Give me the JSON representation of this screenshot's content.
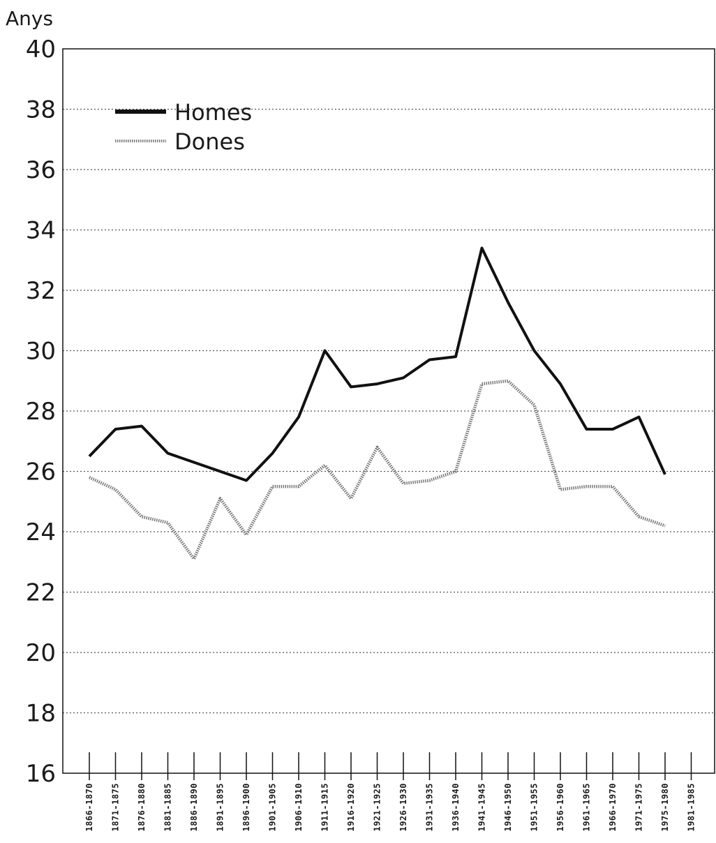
{
  "chart_data": {
    "type": "line",
    "ylabel": "Anys",
    "ylim": [
      16,
      40
    ],
    "yticks": [
      16,
      18,
      20,
      22,
      24,
      26,
      28,
      30,
      32,
      34,
      36,
      38,
      40
    ],
    "grid": true,
    "legend_placement": "top-left",
    "categories": [
      "1866-1870",
      "1871-1875",
      "1876-1880",
      "1881-1885",
      "1886-1890",
      "1891-1895",
      "1896-1900",
      "1901-1905",
      "1906-1910",
      "1911-1915",
      "1916-1920",
      "1921-1925",
      "1926-1930",
      "1931-1935",
      "1936-1940",
      "1941-1945",
      "1946-1950",
      "1951-1955",
      "1956-1960",
      "1961-1965",
      "1966-1970",
      "1971-1975",
      "1975-1980",
      "1981-1985"
    ],
    "series": [
      {
        "name": "Homes",
        "style": "solid",
        "color": "#111111",
        "values": [
          26.5,
          27.4,
          27.5,
          26.6,
          26.3,
          26.0,
          25.7,
          26.6,
          27.8,
          30.0,
          28.8,
          28.9,
          29.1,
          29.7,
          29.8,
          33.4,
          31.6,
          30.0,
          28.9,
          27.4,
          27.4,
          27.8,
          25.9,
          null
        ]
      },
      {
        "name": "Dones",
        "style": "dotted",
        "color": "#777777",
        "values": [
          25.8,
          25.4,
          24.5,
          24.3,
          23.1,
          25.1,
          23.9,
          25.5,
          25.5,
          26.2,
          25.1,
          26.8,
          25.6,
          25.7,
          26.0,
          28.9,
          29.0,
          28.2,
          25.4,
          25.5,
          25.5,
          24.5,
          24.2,
          null
        ]
      }
    ]
  }
}
